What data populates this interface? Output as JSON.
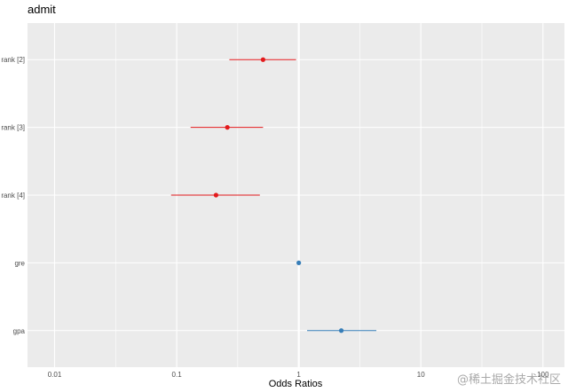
{
  "chart_data": {
    "type": "forest",
    "title": "admit",
    "xlabel": "Odds Ratios",
    "ylabel": "",
    "x_scale": "log10",
    "xlim": [
      0.006,
      150
    ],
    "x_ticks": [
      {
        "value": 0.01,
        "label": "0.01"
      },
      {
        "value": 0.1,
        "label": "0.1"
      },
      {
        "value": 1,
        "label": "1"
      },
      {
        "value": 10,
        "label": "10"
      },
      {
        "value": 100,
        "label": "100"
      }
    ],
    "reference_line": 1,
    "grid": true,
    "rows": [
      {
        "label": "rank [2]",
        "estimate": 0.51,
        "lower": 0.27,
        "upper": 0.95,
        "color": "#e31a1c"
      },
      {
        "label": "rank [3]",
        "estimate": 0.26,
        "lower": 0.13,
        "upper": 0.51,
        "color": "#e31a1c"
      },
      {
        "label": "rank [4]",
        "estimate": 0.21,
        "lower": 0.09,
        "upper": 0.48,
        "color": "#e31a1c"
      },
      {
        "label": "gre",
        "estimate": 1.0,
        "lower": 1.0,
        "upper": 1.0,
        "color": "#377eb8"
      },
      {
        "label": "gpa",
        "estimate": 2.23,
        "lower": 1.17,
        "upper": 4.32,
        "color": "#377eb8"
      }
    ]
  },
  "watermark": "@稀土掘金技术社区"
}
